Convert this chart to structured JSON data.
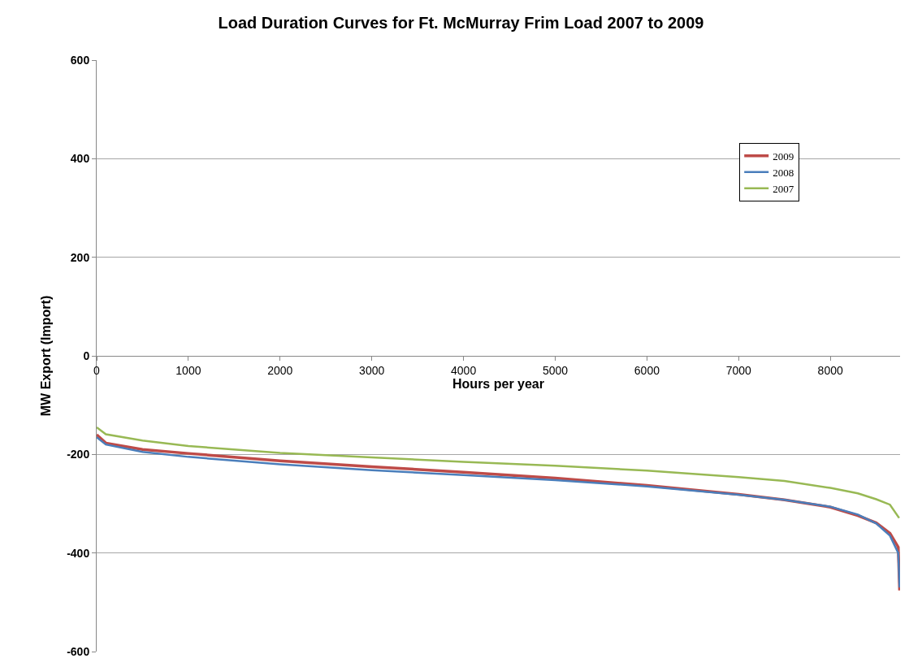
{
  "chart_data": {
    "type": "line",
    "title": "Load Duration Curves for Ft. McMurray Frim Load 2007 to 2009",
    "xlabel": "Hours per year",
    "ylabel": "MW Export (Import)",
    "x": [
      0,
      100,
      500,
      1000,
      2000,
      3000,
      4000,
      5000,
      6000,
      7000,
      7500,
      8000,
      8300,
      8500,
      8650,
      8740,
      8755
    ],
    "series": [
      {
        "name": "2009",
        "color": "#be4b48",
        "values": [
          -160,
          -177,
          -190,
          -198,
          -213,
          -225,
          -236,
          -248,
          -263,
          -281,
          -292,
          -307,
          -324,
          -339,
          -360,
          -388,
          -476
        ]
      },
      {
        "name": "2008",
        "color": "#4a7ebb",
        "values": [
          -165,
          -180,
          -195,
          -205,
          -220,
          -232,
          -242,
          -252,
          -265,
          -282,
          -292,
          -306,
          -322,
          -340,
          -365,
          -400,
          -470
        ]
      },
      {
        "name": "2007",
        "color": "#98b954",
        "x": [
          0,
          100,
          500,
          1000,
          2000,
          3000,
          4000,
          5000,
          6000,
          7000,
          7500,
          8000,
          8300,
          8500,
          8650,
          8750
        ],
        "values": [
          -145,
          -159,
          -172,
          -183,
          -197,
          -206,
          -215,
          -223,
          -233,
          -246,
          -254,
          -268,
          -279,
          -291,
          -302,
          -329
        ]
      }
    ],
    "xlim": [
      0,
      8760
    ],
    "xticks": [
      0,
      1000,
      2000,
      3000,
      4000,
      5000,
      6000,
      7000,
      8000
    ],
    "ylim": [
      -600,
      600
    ],
    "yticks": [
      -600,
      -400,
      -200,
      0,
      200,
      400,
      600
    ],
    "grid": "y",
    "legend": "top right",
    "marker": "none",
    "line_style": "solid"
  }
}
